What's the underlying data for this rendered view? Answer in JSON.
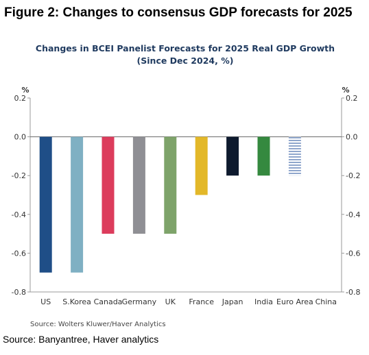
{
  "figure": {
    "caption": "Figure 2: Changes to consensus GDP forecasts for 2025",
    "source_outer": "Source: Banyantree, Haver analytics"
  },
  "chart_data": {
    "type": "bar",
    "title": "Changes in BCEI Panelist Forecasts for 2025 Real GDP Growth",
    "subtitle": "(Since Dec 2024, %)",
    "unit_left": "%",
    "unit_right": "%",
    "categories": [
      "US",
      "S.Korea",
      "Canada",
      "Germany",
      "UK",
      "France",
      "Japan",
      "India",
      "Euro Area",
      "China"
    ],
    "values": [
      -0.7,
      -0.7,
      -0.5,
      -0.5,
      -0.5,
      -0.3,
      -0.2,
      -0.2,
      -0.2,
      0.0
    ],
    "colors": [
      "#1f4e87",
      "#7fb0c3",
      "#dc3c5c",
      "#8f8f94",
      "#7ea36a",
      "#e3b829",
      "#0e1a2e",
      "#35893f",
      "#8fa6cc",
      "#cccccc"
    ],
    "hatched": [
      "Euro Area"
    ],
    "ylim": [
      -0.8,
      0.2
    ],
    "yticks": [
      "0.2",
      "0.0",
      "-0.2",
      "-0.4",
      "-0.6",
      "-0.8"
    ],
    "ytick_values": [
      0.2,
      0.0,
      -0.2,
      -0.4,
      -0.6,
      -0.8
    ],
    "grid": false,
    "legend": "none",
    "source": "Source:  Wolters Kluwer/Haver Analytics"
  }
}
